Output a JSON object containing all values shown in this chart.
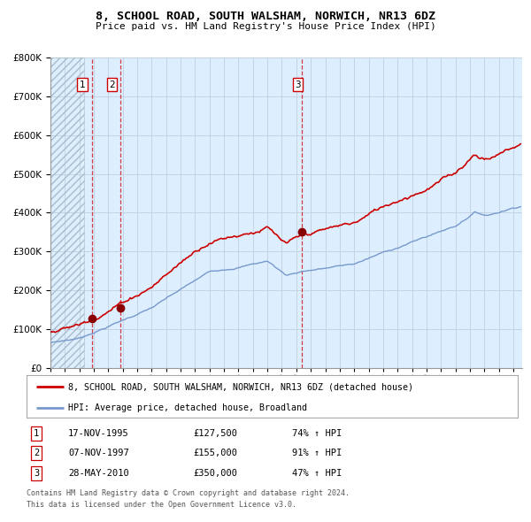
{
  "title": "8, SCHOOL ROAD, SOUTH WALSHAM, NORWICH, NR13 6DZ",
  "subtitle": "Price paid vs. HM Land Registry's House Price Index (HPI)",
  "legend_line1": "8, SCHOOL ROAD, SOUTH WALSHAM, NORWICH, NR13 6DZ (detached house)",
  "legend_line2": "HPI: Average price, detached house, Broadland",
  "footer1": "Contains HM Land Registry data © Crown copyright and database right 2024.",
  "footer2": "This data is licensed under the Open Government Licence v3.0.",
  "transactions": [
    {
      "num": "1",
      "date": "17-NOV-1995",
      "price": "£127,500",
      "hpi_pct": "74% ↑ HPI",
      "date_x": 1995.878,
      "price_y": 127500
    },
    {
      "num": "2",
      "date": "07-NOV-1997",
      "price": "£155,000",
      "hpi_pct": "91% ↑ HPI",
      "date_x": 1997.853,
      "price_y": 155000
    },
    {
      "num": "3",
      "date": "28-MAY-2010",
      "price": "£350,000",
      "hpi_pct": "47% ↑ HPI",
      "date_x": 2010.405,
      "price_y": 350000
    }
  ],
  "red_line_color": "#cc0000",
  "blue_line_color": "#7799cc",
  "bg_color": "#ddeeff",
  "grid_color": "#c0cfe0",
  "marker_color": "#880000",
  "label_box_color": "#cc0000",
  "ylim": [
    0,
    800000
  ],
  "yticks": [
    0,
    100000,
    200000,
    300000,
    400000,
    500000,
    600000,
    700000,
    800000
  ],
  "xlim_start": 1993.0,
  "xlim_end": 2025.6,
  "hatch_end": 1995.3
}
